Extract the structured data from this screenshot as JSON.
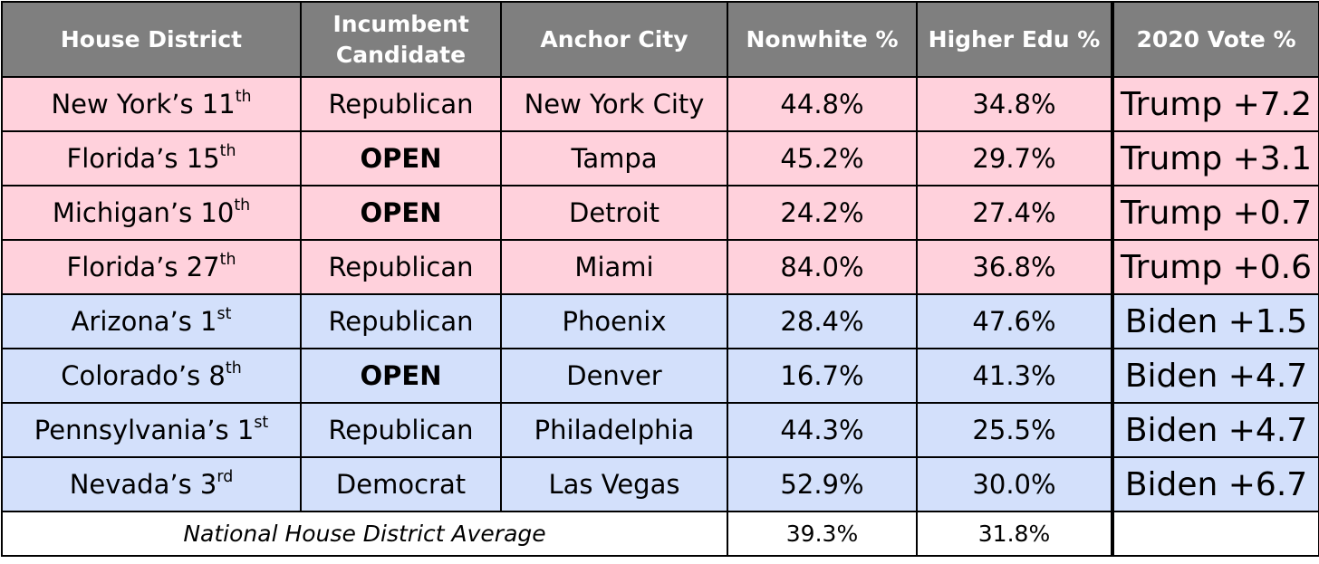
{
  "table": {
    "headers": [
      "House District",
      "Incumbent Candidate",
      "Anchor City",
      "Nonwhite %",
      "Higher Edu %",
      "2020 Vote %"
    ],
    "rows": [
      {
        "district": "New York’s 11",
        "district_sup": "th",
        "incumbent": "Republican",
        "city": "New York City",
        "nonwhite": "44.8%",
        "higher_edu": "34.8%",
        "vote": "Trump +7.2"
      },
      {
        "district": "Florida’s 15",
        "district_sup": "th",
        "incumbent": "OPEN",
        "city": "Tampa",
        "nonwhite": "45.2%",
        "higher_edu": "29.7%",
        "vote": "Trump +3.1"
      },
      {
        "district": "Michigan’s 10",
        "district_sup": "th",
        "incumbent": "OPEN",
        "city": "Detroit",
        "nonwhite": "24.2%",
        "higher_edu": "27.4%",
        "vote": "Trump +0.7"
      },
      {
        "district": "Florida’s 27",
        "district_sup": "th",
        "incumbent": "Republican",
        "city": "Miami",
        "nonwhite": "84.0%",
        "higher_edu": "36.8%",
        "vote": "Trump +0.6"
      },
      {
        "district": "Arizona’s 1",
        "district_sup": "st",
        "incumbent": "Republican",
        "city": "Phoenix",
        "nonwhite": "28.4%",
        "higher_edu": "47.6%",
        "vote": "Biden +1.5"
      },
      {
        "district": "Colorado’s 8",
        "district_sup": "th",
        "incumbent": "OPEN",
        "city": "Denver",
        "nonwhite": "16.7%",
        "higher_edu": "41.3%",
        "vote": "Biden +4.7"
      },
      {
        "district": "Pennsylvania’s 1",
        "district_sup": "st",
        "incumbent": "Republican",
        "city": "Philadelphia",
        "nonwhite": "44.3%",
        "higher_edu": "25.5%",
        "vote": "Biden +4.7"
      },
      {
        "district": "Nevada’s 3",
        "district_sup": "rd",
        "incumbent": "Democrat",
        "city": "Las Vegas",
        "nonwhite": "52.9%",
        "higher_edu": "30.0%",
        "vote": "Biden +6.7"
      }
    ],
    "average": {
      "label": "National House District Average",
      "nonwhite": "39.3%",
      "higher_edu": "31.8%"
    }
  },
  "colors": {
    "header_bg": "#7f7f7f",
    "trump_row": "#ffd1dc",
    "biden_row": "#d3e0fb"
  }
}
